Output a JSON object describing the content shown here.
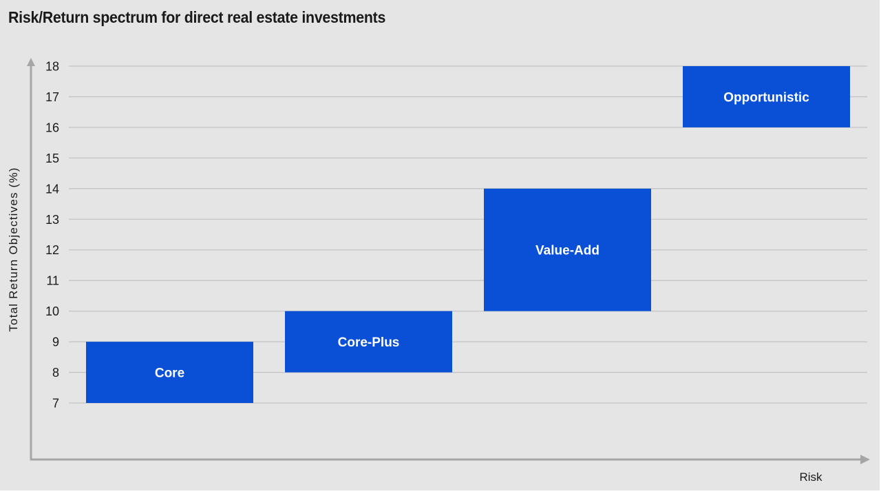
{
  "chart_data": {
    "type": "bar",
    "title": "Risk/Return spectrum for direct real estate investments",
    "xlabel": "Risk",
    "ylabel": "Total Return Objectives (%)",
    "ylim": [
      7,
      18
    ],
    "yticks": [
      7,
      8,
      9,
      10,
      11,
      12,
      13,
      14,
      15,
      16,
      17,
      18
    ],
    "grid": true,
    "categories": [
      "Core",
      "Core-Plus",
      "Value-Add",
      "Opportunistic"
    ],
    "ranges": [
      {
        "name": "Core",
        "low": 7,
        "high": 9
      },
      {
        "name": "Core-Plus",
        "low": 8,
        "high": 10
      },
      {
        "name": "Value-Add",
        "low": 10,
        "high": 14
      },
      {
        "name": "Opportunistic",
        "low": 16,
        "high": 18
      }
    ],
    "bar_color": "#0a50d6",
    "background_color": "#e5e5e5",
    "grid_color": "#c4c4c4",
    "axis_color": "#a6a6a6"
  }
}
